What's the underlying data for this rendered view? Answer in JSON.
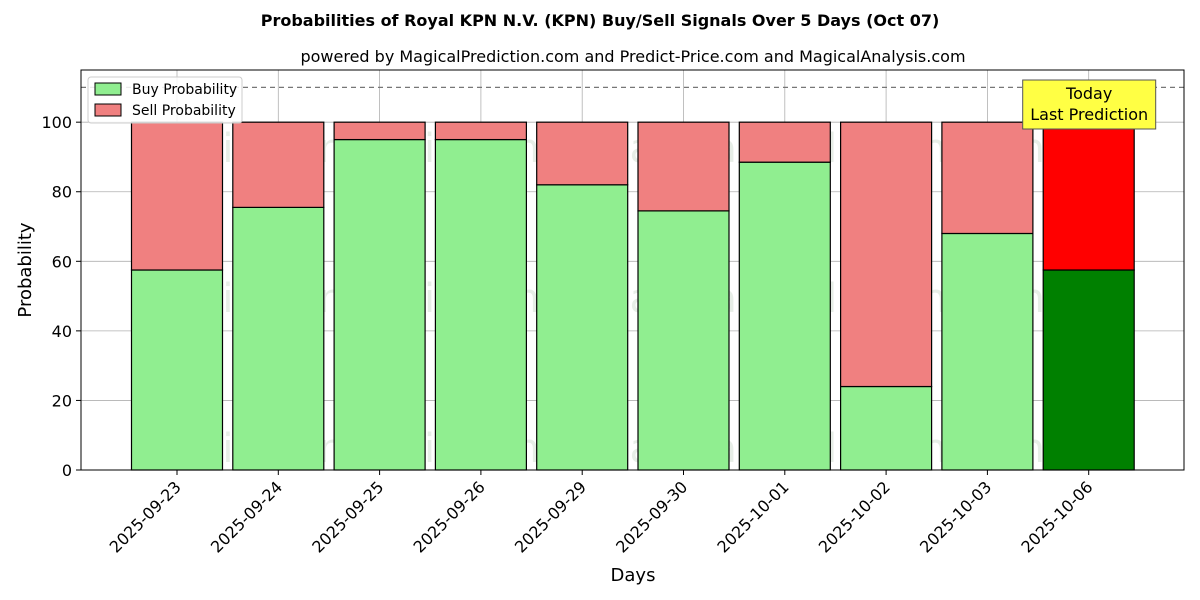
{
  "chart_data": {
    "type": "bar",
    "stacked": true,
    "title": "Probabilities of Royal KPN N.V. (KPN) Buy/Sell Signals Over 5 Days (Oct 07)",
    "subtitle": "powered by MagicalPrediction.com and Predict-Price.com and MagicalAnalysis.com",
    "xlabel": "Days",
    "ylabel": "Probability",
    "ylim": [
      0,
      115
    ],
    "yticks": [
      0,
      20,
      40,
      60,
      80,
      100
    ],
    "reference_line": 110,
    "grid": true,
    "legend_position": "top-left",
    "categories": [
      "2025-09-23",
      "2025-09-24",
      "2025-09-25",
      "2025-09-26",
      "2025-09-29",
      "2025-09-30",
      "2025-10-01",
      "2025-10-02",
      "2025-10-03",
      "2025-10-06"
    ],
    "series": [
      {
        "name": "Buy Probability",
        "color": "#90ee90",
        "highlight_color": "#008000",
        "values": [
          57.5,
          75.5,
          95,
          95,
          82,
          74.5,
          88.5,
          24,
          68,
          57.5
        ]
      },
      {
        "name": "Sell Probability",
        "color": "#f08080",
        "highlight_color": "#ff0000",
        "values": [
          42.5,
          24.5,
          5,
          5,
          18,
          25.5,
          11.5,
          76,
          32,
          42.5
        ]
      }
    ],
    "highlight_index": 9,
    "annotation": {
      "lines": [
        "Today",
        "Last Prediction"
      ],
      "color": "#ffff44"
    },
    "watermarks": [
      "MagicalAnalysis.com",
      "MagicalPrediction.com"
    ]
  }
}
